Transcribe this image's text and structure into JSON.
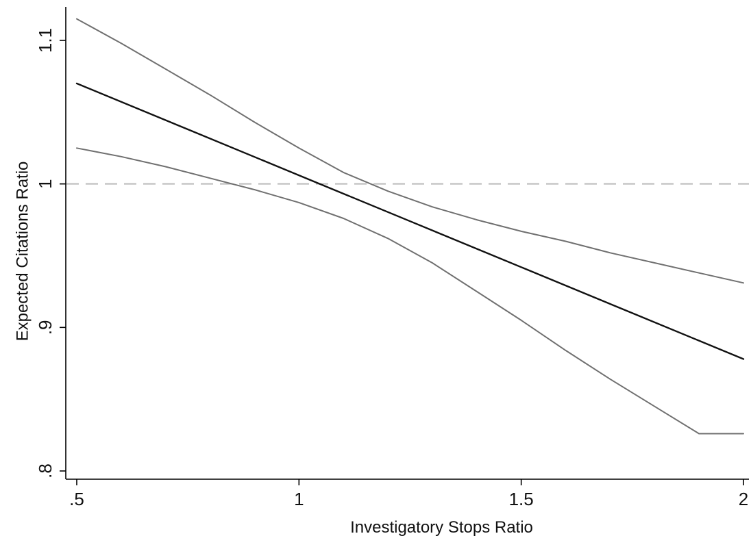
{
  "chart_data": {
    "type": "line",
    "title": "",
    "xlabel": "Investigatory Stops Ratio",
    "ylabel": "Expected Citations Ratio",
    "xlim": [
      0.5,
      2.0
    ],
    "ylim": [
      0.8,
      1.1
    ],
    "x_ticks": [
      {
        "value": 0.5,
        "label": ".5"
      },
      {
        "value": 1.0,
        "label": "1"
      },
      {
        "value": 1.5,
        "label": "1.5"
      },
      {
        "value": 2.0,
        "label": "2"
      }
    ],
    "y_ticks": [
      {
        "value": 0.8,
        "label": ".8"
      },
      {
        "value": 0.9,
        "label": ".9"
      },
      {
        "value": 1.0,
        "label": "1"
      },
      {
        "value": 1.1,
        "label": "1.1"
      }
    ],
    "grid": false,
    "legend": "none",
    "reference_line": {
      "y": 1.0,
      "style": "dashed",
      "color": "#bbbbbb"
    },
    "series": [
      {
        "role": "estimate",
        "color": "#111111",
        "x": [
          0.5,
          0.75,
          1.0,
          1.25,
          1.5,
          1.75,
          2.0
        ],
        "y": [
          1.07,
          1.038,
          1.006,
          0.974,
          0.942,
          0.91,
          0.878
        ]
      },
      {
        "role": "upper-ci",
        "color": "#707070",
        "x": [
          0.5,
          0.6,
          0.7,
          0.8,
          0.9,
          1.0,
          1.1,
          1.2,
          1.3,
          1.4,
          1.5,
          1.6,
          1.7,
          1.8,
          1.9,
          2.0
        ],
        "y": [
          1.115,
          1.098,
          1.08,
          1.062,
          1.043,
          1.025,
          1.008,
          0.995,
          0.984,
          0.975,
          0.967,
          0.96,
          0.952,
          0.945,
          0.938,
          0.931
        ]
      },
      {
        "role": "lower-ci",
        "color": "#707070",
        "x": [
          0.5,
          0.6,
          0.7,
          0.8,
          0.9,
          1.0,
          1.1,
          1.2,
          1.3,
          1.4,
          1.5,
          1.6,
          1.7,
          1.8,
          1.9,
          2.0
        ],
        "y": [
          1.025,
          1.019,
          1.012,
          1.004,
          0.996,
          0.987,
          0.976,
          0.962,
          0.945,
          0.925,
          0.905,
          0.884,
          0.864,
          0.845,
          0.826,
          0.826
        ]
      }
    ]
  }
}
